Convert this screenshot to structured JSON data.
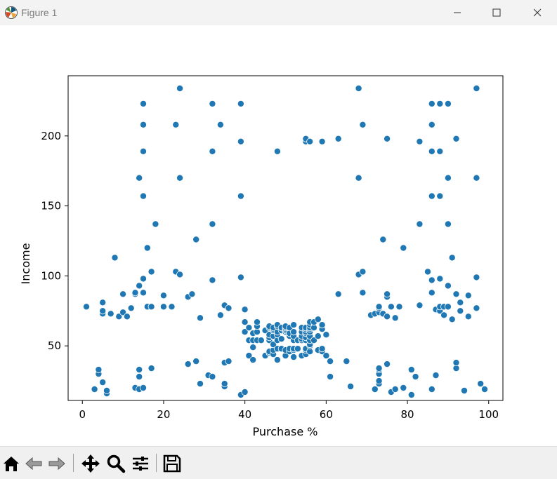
{
  "window": {
    "title": "Figure 1",
    "icons": [
      "matplotlib-logo-icon",
      "minimize-icon",
      "maximize-icon",
      "close-icon"
    ]
  },
  "toolbar": {
    "buttons": [
      "home-icon",
      "back-icon",
      "forward-icon",
      "pan-icon",
      "zoom-icon",
      "configure-subplots-icon",
      "save-icon"
    ]
  },
  "chart_data": {
    "type": "scatter",
    "xlabel": "Purchase %",
    "ylabel": "Income",
    "xlim": [
      -3.5,
      103.5
    ],
    "ylim": [
      11,
      243
    ],
    "xticks": [
      0,
      20,
      40,
      60,
      80,
      100
    ],
    "yticks": [
      50,
      100,
      150,
      200
    ],
    "xtick_labels": [
      "0",
      "20",
      "40",
      "60",
      "80",
      "100"
    ],
    "ytick_labels": [
      "50",
      "100",
      "150",
      "200"
    ],
    "grid": false,
    "marker_color": "#1f77b4",
    "points": [
      [
        1,
        78
      ],
      [
        3,
        19
      ],
      [
        4,
        30
      ],
      [
        4,
        33
      ],
      [
        5,
        24
      ],
      [
        5,
        73
      ],
      [
        5,
        75
      ],
      [
        5,
        81
      ],
      [
        6,
        16
      ],
      [
        6,
        18
      ],
      [
        7,
        73
      ],
      [
        8,
        113
      ],
      [
        9,
        71
      ],
      [
        10,
        74
      ],
      [
        10,
        87
      ],
      [
        11,
        71
      ],
      [
        12,
        77
      ],
      [
        13,
        20
      ],
      [
        13,
        87
      ],
      [
        13,
        88
      ],
      [
        14,
        19
      ],
      [
        14,
        28
      ],
      [
        14,
        33
      ],
      [
        14,
        93
      ],
      [
        14,
        170
      ],
      [
        15,
        20
      ],
      [
        15,
        88
      ],
      [
        15,
        98
      ],
      [
        15,
        157
      ],
      [
        15,
        189
      ],
      [
        15,
        208
      ],
      [
        15,
        223
      ],
      [
        16,
        78
      ],
      [
        16,
        120
      ],
      [
        17,
        34
      ],
      [
        17,
        78
      ],
      [
        17,
        103
      ],
      [
        18,
        137
      ],
      [
        20,
        78
      ],
      [
        20,
        86
      ],
      [
        22,
        78
      ],
      [
        23,
        103
      ],
      [
        23,
        208
      ],
      [
        24,
        101
      ],
      [
        24,
        170
      ],
      [
        24,
        234
      ],
      [
        26,
        37
      ],
      [
        26,
        85
      ],
      [
        27,
        87
      ],
      [
        28,
        39
      ],
      [
        28,
        126
      ],
      [
        29,
        23
      ],
      [
        29,
        70
      ],
      [
        31,
        29
      ],
      [
        32,
        28
      ],
      [
        32,
        97
      ],
      [
        32,
        137
      ],
      [
        32,
        189
      ],
      [
        32,
        223
      ],
      [
        34,
        72
      ],
      [
        34,
        208
      ],
      [
        35,
        21
      ],
      [
        35,
        23
      ],
      [
        35,
        38
      ],
      [
        35,
        79
      ],
      [
        36,
        39
      ],
      [
        36,
        77
      ],
      [
        39,
        15
      ],
      [
        39,
        99
      ],
      [
        39,
        157
      ],
      [
        39,
        196
      ],
      [
        39,
        223
      ],
      [
        40,
        17
      ],
      [
        40,
        60
      ],
      [
        40,
        67
      ],
      [
        40,
        76
      ],
      [
        41,
        43
      ],
      [
        41,
        54
      ],
      [
        41,
        63
      ],
      [
        42,
        40
      ],
      [
        42,
        49
      ],
      [
        42,
        54
      ],
      [
        42,
        59
      ],
      [
        43,
        54
      ],
      [
        43,
        60
      ],
      [
        43,
        64
      ],
      [
        43,
        67
      ],
      [
        44,
        54
      ],
      [
        45,
        43
      ],
      [
        45,
        61
      ],
      [
        46,
        45
      ],
      [
        46,
        46
      ],
      [
        46,
        54
      ],
      [
        46,
        56
      ],
      [
        46,
        58
      ],
      [
        46,
        63
      ],
      [
        46,
        64
      ],
      [
        47,
        44
      ],
      [
        47,
        47
      ],
      [
        47,
        51
      ],
      [
        47,
        57
      ],
      [
        47,
        61
      ],
      [
        47,
        62
      ],
      [
        47,
        63
      ],
      [
        48,
        40
      ],
      [
        48,
        48
      ],
      [
        48,
        54
      ],
      [
        48,
        58
      ],
      [
        48,
        60
      ],
      [
        48,
        64
      ],
      [
        48,
        65
      ],
      [
        48,
        189
      ],
      [
        49,
        48
      ],
      [
        49,
        55
      ],
      [
        49,
        61
      ],
      [
        49,
        63
      ],
      [
        50,
        43
      ],
      [
        50,
        47
      ],
      [
        50,
        60
      ],
      [
        50,
        61
      ],
      [
        50,
        62
      ],
      [
        50,
        63
      ],
      [
        50,
        64
      ],
      [
        51,
        46
      ],
      [
        51,
        48
      ],
      [
        51,
        57
      ],
      [
        51,
        59
      ],
      [
        51,
        63
      ],
      [
        52,
        42
      ],
      [
        52,
        47
      ],
      [
        52,
        48
      ],
      [
        52,
        54
      ],
      [
        52,
        57
      ],
      [
        52,
        60
      ],
      [
        52,
        65
      ],
      [
        53,
        48
      ],
      [
        53,
        54
      ],
      [
        54,
        43
      ],
      [
        54,
        54
      ],
      [
        54,
        55
      ],
      [
        54,
        57
      ],
      [
        54,
        60
      ],
      [
        54,
        63
      ],
      [
        55,
        44
      ],
      [
        55,
        47
      ],
      [
        55,
        48
      ],
      [
        55,
        54
      ],
      [
        55,
        56
      ],
      [
        55,
        59
      ],
      [
        55,
        60
      ],
      [
        55,
        62
      ],
      [
        55,
        63
      ],
      [
        55,
        196
      ],
      [
        55,
        198
      ],
      [
        56,
        46
      ],
      [
        56,
        50
      ],
      [
        56,
        51
      ],
      [
        56,
        54
      ],
      [
        56,
        57
      ],
      [
        56,
        60
      ],
      [
        56,
        62
      ],
      [
        56,
        63
      ],
      [
        56,
        65
      ],
      [
        56,
        67
      ],
      [
        56,
        196
      ],
      [
        57,
        54
      ],
      [
        57,
        63
      ],
      [
        57,
        67
      ],
      [
        58,
        47
      ],
      [
        58,
        57
      ],
      [
        58,
        69
      ],
      [
        59,
        46
      ],
      [
        59,
        48
      ],
      [
        59,
        62
      ],
      [
        59,
        65
      ],
      [
        59,
        196
      ],
      [
        60,
        43
      ],
      [
        60,
        58
      ],
      [
        61,
        28
      ],
      [
        61,
        39
      ],
      [
        63,
        87
      ],
      [
        63,
        198
      ],
      [
        65,
        39
      ],
      [
        66,
        21
      ],
      [
        68,
        101
      ],
      [
        68,
        170
      ],
      [
        68,
        234
      ],
      [
        69,
        88
      ],
      [
        69,
        103
      ],
      [
        69,
        208
      ],
      [
        71,
        72
      ],
      [
        72,
        19
      ],
      [
        72,
        73
      ],
      [
        73,
        23
      ],
      [
        73,
        25
      ],
      [
        73,
        30
      ],
      [
        73,
        33
      ],
      [
        73,
        34
      ],
      [
        73,
        74
      ],
      [
        73,
        77
      ],
      [
        73,
        78
      ],
      [
        74,
        73
      ],
      [
        74,
        126
      ],
      [
        75,
        37
      ],
      [
        75,
        71
      ],
      [
        75,
        85
      ],
      [
        75,
        87
      ],
      [
        75,
        198
      ],
      [
        76,
        17
      ],
      [
        76,
        78
      ],
      [
        77,
        19
      ],
      [
        77,
        70
      ],
      [
        78,
        78
      ],
      [
        79,
        20
      ],
      [
        79,
        120
      ],
      [
        81,
        15
      ],
      [
        81,
        33
      ],
      [
        82,
        28
      ],
      [
        83,
        79
      ],
      [
        83,
        137
      ],
      [
        83,
        196
      ],
      [
        85,
        103
      ],
      [
        86,
        19
      ],
      [
        86,
        88
      ],
      [
        86,
        97
      ],
      [
        86,
        157
      ],
      [
        86,
        189
      ],
      [
        86,
        208
      ],
      [
        86,
        223
      ],
      [
        87,
        29
      ],
      [
        87,
        76
      ],
      [
        88,
        75
      ],
      [
        88,
        78
      ],
      [
        88,
        98
      ],
      [
        88,
        157
      ],
      [
        88,
        189
      ],
      [
        88,
        223
      ],
      [
        89,
        72
      ],
      [
        89,
        78
      ],
      [
        90,
        78
      ],
      [
        90,
        93
      ],
      [
        90,
        137
      ],
      [
        90,
        170
      ],
      [
        90,
        223
      ],
      [
        91,
        69
      ],
      [
        91,
        113
      ],
      [
        92,
        34
      ],
      [
        92,
        38
      ],
      [
        92,
        87
      ],
      [
        92,
        198
      ],
      [
        93,
        75
      ],
      [
        93,
        81
      ],
      [
        94,
        18
      ],
      [
        95,
        71
      ],
      [
        95,
        86
      ],
      [
        97,
        77
      ],
      [
        97,
        99
      ],
      [
        97,
        170
      ],
      [
        97,
        234
      ],
      [
        98,
        23
      ],
      [
        99,
        19
      ]
    ]
  }
}
